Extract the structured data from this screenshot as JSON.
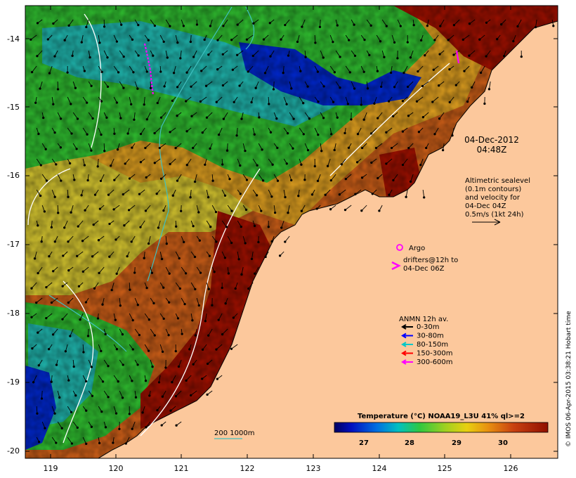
{
  "map": {
    "date_label": "04-Dec-2012",
    "time_label": "04:48Z",
    "x_ticks": [
      "119",
      "120",
      "121",
      "122",
      "123",
      "124",
      "125",
      "126"
    ],
    "y_ticks": [
      "-14",
      "-15",
      "-16",
      "-17",
      "-18",
      "-19",
      "-20"
    ],
    "side_credit": "© IMOS 06-Apr-2015 03:38:21 Hobart time"
  },
  "altimetry": {
    "lines": [
      "Altimetric sealevel",
      "(0.1m contours)",
      "and velocity for",
      "04-Dec 04Z",
      "0.5m/s (1kt 24h)"
    ]
  },
  "argo": {
    "label": "Argo"
  },
  "drifters": {
    "lines": [
      "drifters@12h to",
      "04-Dec 06Z"
    ]
  },
  "anmn": {
    "title": "ANMN 12h av.",
    "items": [
      {
        "label": "0-30m",
        "color": "#000000"
      },
      {
        "label": "30-80m",
        "color": "#0000ff"
      },
      {
        "label": "80-150m",
        "color": "#00c8c8"
      },
      {
        "label": "150-300m",
        "color": "#ff0000"
      },
      {
        "label": "300-600m",
        "color": "#ff00ff"
      }
    ]
  },
  "isobath": {
    "label": "200  1000m",
    "color": "#40c0c0"
  },
  "colorbar": {
    "title": "Temperature (°C) NOAA19_L3U 41% ql>=2",
    "ticks": [
      "27",
      "28",
      "29",
      "30"
    ]
  },
  "colors": {
    "land": "#fcc89c",
    "sst_hot": "#a01000",
    "sst_warm": "#d06018",
    "sst_mid": "#e0a020",
    "sst_yellow": "#d8c830",
    "sst_green": "#30c030",
    "sst_cyan": "#20b8b0",
    "sst_blue": "#0028d0"
  }
}
